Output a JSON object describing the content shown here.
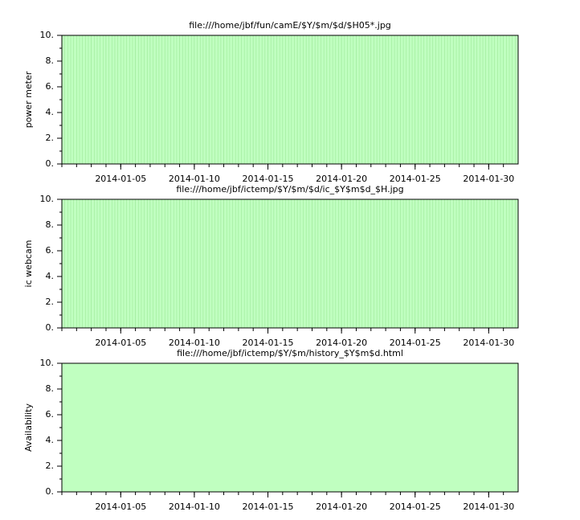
{
  "chart_data": [
    {
      "type": "bar",
      "title": "file:///home/jbf/fun/camE/$Y/$m/$d/$H05*.jpg",
      "ylabel": "power meter",
      "x": [
        "2014-01-01",
        "2014-01-02",
        "2014-01-03",
        "2014-01-04",
        "2014-01-05",
        "2014-01-06",
        "2014-01-07",
        "2014-01-08",
        "2014-01-09",
        "2014-01-10",
        "2014-01-11",
        "2014-01-12",
        "2014-01-13",
        "2014-01-14",
        "2014-01-15",
        "2014-01-16",
        "2014-01-17",
        "2014-01-18",
        "2014-01-19",
        "2014-01-20",
        "2014-01-21",
        "2014-01-22",
        "2014-01-23",
        "2014-01-24",
        "2014-01-25",
        "2014-01-26",
        "2014-01-27",
        "2014-01-28",
        "2014-01-29",
        "2014-01-30",
        "2014-01-31"
      ],
      "values": [
        10,
        10,
        10,
        10,
        10,
        10,
        10,
        10,
        10,
        10,
        10,
        10,
        10,
        10,
        10,
        10,
        10,
        10,
        10,
        10,
        10,
        10,
        10,
        10,
        10,
        10,
        10,
        10,
        10,
        10,
        10
      ],
      "color": "#c0ffc0",
      "edgecolor": "#9ee89a",
      "xlim": [
        "2014-01-01",
        "2014-02-01"
      ],
      "xticks": [
        "2014-01-05",
        "2014-01-10",
        "2014-01-15",
        "2014-01-20",
        "2014-01-25",
        "2014-01-30"
      ],
      "ylim": [
        0,
        10
      ],
      "yticks": [
        {
          "value": 0,
          "label": "0."
        },
        {
          "value": 2,
          "label": "2."
        },
        {
          "value": 4,
          "label": "4."
        },
        {
          "value": 6,
          "label": "6."
        },
        {
          "value": 8,
          "label": "8."
        },
        {
          "value": 10,
          "label": "10."
        }
      ]
    },
    {
      "type": "bar",
      "title": "file:///home/jbf/ictemp/$Y/$m/$d/ic_$Y$m$d_$H.jpg",
      "ylabel": "ic webcam",
      "x": [
        "2014-01-01",
        "2014-01-02",
        "2014-01-03",
        "2014-01-04",
        "2014-01-05",
        "2014-01-06",
        "2014-01-07",
        "2014-01-08",
        "2014-01-09",
        "2014-01-10",
        "2014-01-11",
        "2014-01-12",
        "2014-01-13",
        "2014-01-14",
        "2014-01-15",
        "2014-01-16",
        "2014-01-17",
        "2014-01-18",
        "2014-01-19",
        "2014-01-20",
        "2014-01-21",
        "2014-01-22",
        "2014-01-23",
        "2014-01-24",
        "2014-01-25",
        "2014-01-26",
        "2014-01-27",
        "2014-01-28",
        "2014-01-29",
        "2014-01-30",
        "2014-01-31"
      ],
      "values": [
        10,
        10,
        10,
        10,
        10,
        10,
        10,
        10,
        10,
        10,
        10,
        10,
        10,
        10,
        10,
        10,
        10,
        10,
        10,
        10,
        10,
        10,
        10,
        10,
        10,
        10,
        10,
        10,
        10,
        10,
        10
      ],
      "color": "#c0ffc0",
      "edgecolor": "#9ee89a",
      "xlim": [
        "2014-01-01",
        "2014-02-01"
      ],
      "xticks": [
        "2014-01-05",
        "2014-01-10",
        "2014-01-15",
        "2014-01-20",
        "2014-01-25",
        "2014-01-30"
      ],
      "ylim": [
        0,
        10
      ],
      "yticks": [
        {
          "value": 0,
          "label": "0."
        },
        {
          "value": 2,
          "label": "2."
        },
        {
          "value": 4,
          "label": "4."
        },
        {
          "value": 6,
          "label": "6."
        },
        {
          "value": 8,
          "label": "8."
        },
        {
          "value": 10,
          "label": "10."
        }
      ]
    },
    {
      "type": "bar",
      "title": "file:///home/jbf/ictemp/$Y/$m/history_$Y$m$d.html",
      "ylabel": "Availability",
      "x": [
        "2014-01-01",
        "2014-01-02",
        "2014-01-03",
        "2014-01-04",
        "2014-01-05",
        "2014-01-06",
        "2014-01-07",
        "2014-01-08",
        "2014-01-09",
        "2014-01-10",
        "2014-01-11",
        "2014-01-12",
        "2014-01-13",
        "2014-01-14",
        "2014-01-15",
        "2014-01-16",
        "2014-01-17",
        "2014-01-18",
        "2014-01-19",
        "2014-01-20",
        "2014-01-21",
        "2014-01-22",
        "2014-01-23",
        "2014-01-24",
        "2014-01-25",
        "2014-01-26",
        "2014-01-27",
        "2014-01-28",
        "2014-01-29",
        "2014-01-30",
        "2014-01-31"
      ],
      "values": [
        10,
        10,
        10,
        10,
        10,
        10,
        10,
        10,
        10,
        10,
        10,
        10,
        10,
        10,
        10,
        10,
        10,
        10,
        10,
        10,
        10,
        10,
        10,
        10,
        10,
        10,
        10,
        10,
        10,
        10,
        10
      ],
      "color": "#c0ffc0",
      "xlim": [
        "2014-01-01",
        "2014-02-01"
      ],
      "xticks": [
        "2014-01-05",
        "2014-01-10",
        "2014-01-15",
        "2014-01-20",
        "2014-01-25",
        "2014-01-30"
      ],
      "ylim": [
        0,
        10
      ],
      "yticks": [
        {
          "value": 0,
          "label": "0."
        },
        {
          "value": 2,
          "label": "2."
        },
        {
          "value": 4,
          "label": "4."
        },
        {
          "value": 6,
          "label": "6."
        },
        {
          "value": 8,
          "label": "8."
        },
        {
          "value": 10,
          "label": "10."
        }
      ]
    }
  ]
}
